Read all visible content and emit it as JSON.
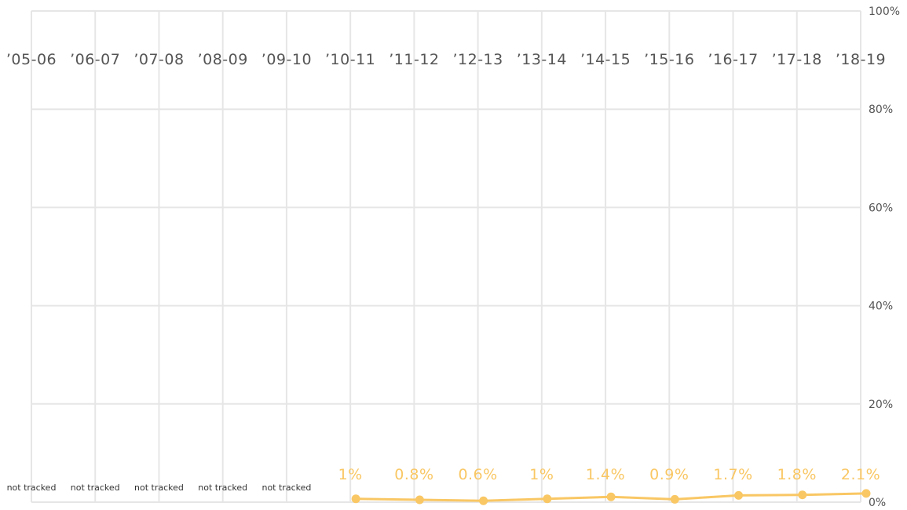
{
  "chart_data": {
    "type": "line",
    "categories": [
      "’05-06",
      "’06-07",
      "’07-08",
      "’08-09",
      "’09-10",
      "’10-11",
      "’11-12",
      "’12-13",
      "’13-14",
      "’14-15",
      "’15-16",
      "’16-17",
      "’17-18",
      "’18-19"
    ],
    "values": [
      null,
      null,
      null,
      null,
      null,
      1,
      0.8,
      0.6,
      1,
      1.4,
      0.9,
      1.7,
      1.8,
      2.1
    ],
    "data_labels": [
      "not tracked",
      "not tracked",
      "not tracked",
      "not tracked",
      "not tracked",
      "1%",
      "0.8%",
      "0.6%",
      "1%",
      "1.4%",
      "0.9%",
      "1.7%",
      "1.8%",
      "2.1%"
    ],
    "yticks": [
      "0%",
      "20%",
      "40%",
      "60%",
      "80%",
      "100%"
    ],
    "ylim": [
      0,
      100
    ],
    "grid": true,
    "line_color": "#f9c764",
    "grid_color": "#e6e6e6"
  }
}
